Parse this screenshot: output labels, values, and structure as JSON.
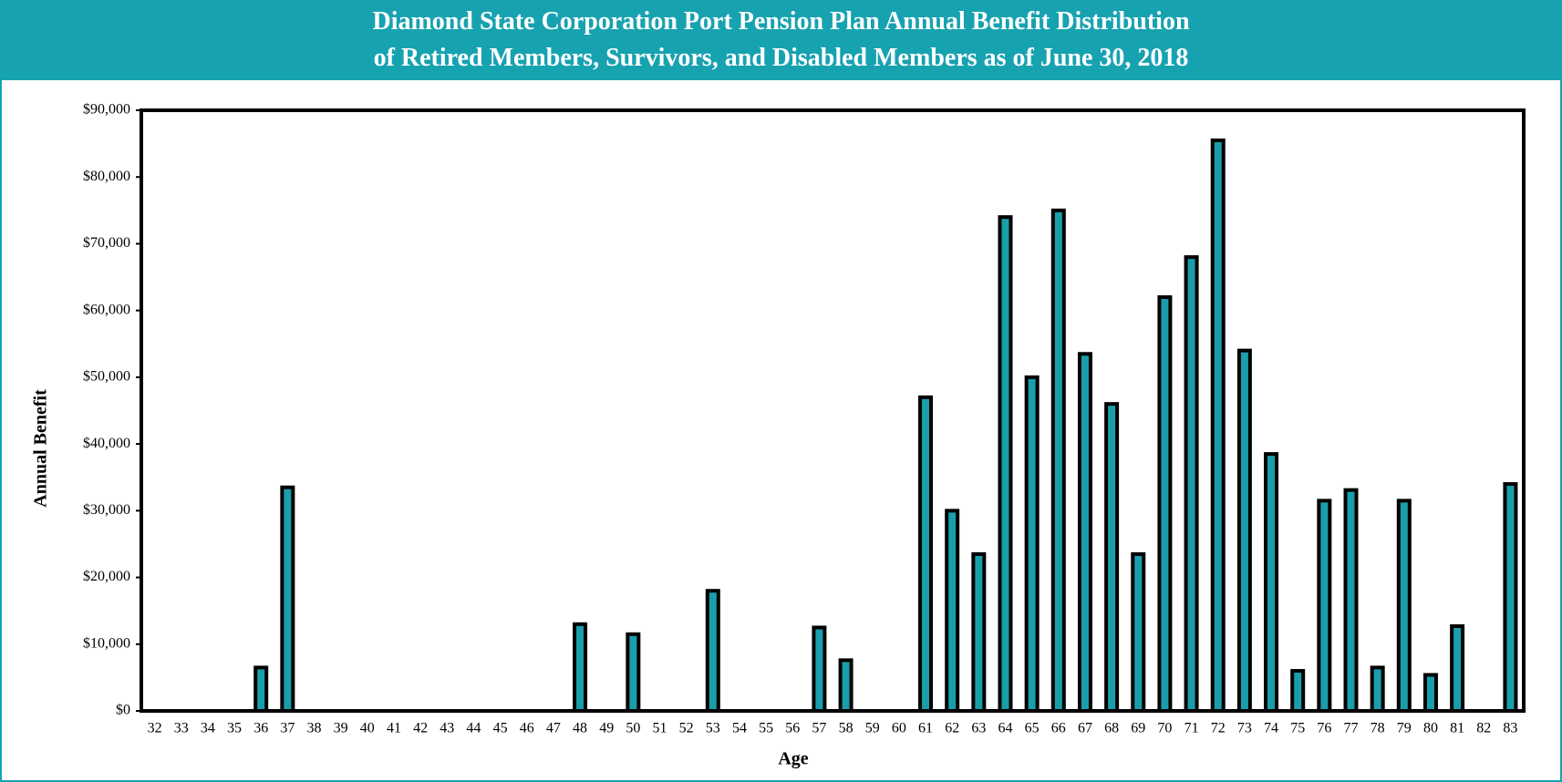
{
  "chart_data": {
    "type": "bar",
    "title_lines": [
      "Diamond State Corporation Port Pension Plan Annual Benefit Distribution",
      "of Retired Members, Survivors, and Disabled Members as of June 30, 2018"
    ],
    "x_label": "Age",
    "y_label": "Annual Benefit",
    "categories": [
      "32",
      "33",
      "34",
      "35",
      "36",
      "37",
      "38",
      "39",
      "40",
      "41",
      "42",
      "43",
      "44",
      "45",
      "46",
      "47",
      "48",
      "49",
      "50",
      "51",
      "52",
      "53",
      "54",
      "55",
      "56",
      "57",
      "58",
      "59",
      "60",
      "61",
      "62",
      "63",
      "64",
      "65",
      "66",
      "67",
      "68",
      "69",
      "70",
      "71",
      "72",
      "73",
      "74",
      "75",
      "76",
      "77",
      "78",
      "79",
      "80",
      "81",
      "82",
      "83"
    ],
    "values": [
      0,
      0,
      0,
      0,
      6500,
      33500,
      0,
      0,
      0,
      0,
      0,
      0,
      0,
      0,
      0,
      0,
      13000,
      0,
      11500,
      0,
      0,
      18000,
      0,
      0,
      0,
      12500,
      7600,
      0,
      0,
      47000,
      30000,
      23500,
      74000,
      50000,
      75000,
      53500,
      46000,
      23500,
      62000,
      68000,
      85500,
      54000,
      38500,
      6000,
      31500,
      33100,
      6500,
      31500,
      5400,
      12700,
      0,
      34000
    ],
    "color": "#1a9eab",
    "ylim": [
      0,
      90000
    ],
    "yticks": [
      {
        "value": 0,
        "label": "$0"
      },
      {
        "value": 10000,
        "label": "$10,000"
      },
      {
        "value": 20000,
        "label": "$20,000"
      },
      {
        "value": 30000,
        "label": "$30,000"
      },
      {
        "value": 40000,
        "label": "$40,000"
      },
      {
        "value": 50000,
        "label": "$50,000"
      },
      {
        "value": 60000,
        "label": "$60,000"
      },
      {
        "value": 70000,
        "label": "$70,000"
      },
      {
        "value": 80000,
        "label": "$80,000"
      },
      {
        "value": 90000,
        "label": "$90,000"
      }
    ],
    "grid": false
  }
}
